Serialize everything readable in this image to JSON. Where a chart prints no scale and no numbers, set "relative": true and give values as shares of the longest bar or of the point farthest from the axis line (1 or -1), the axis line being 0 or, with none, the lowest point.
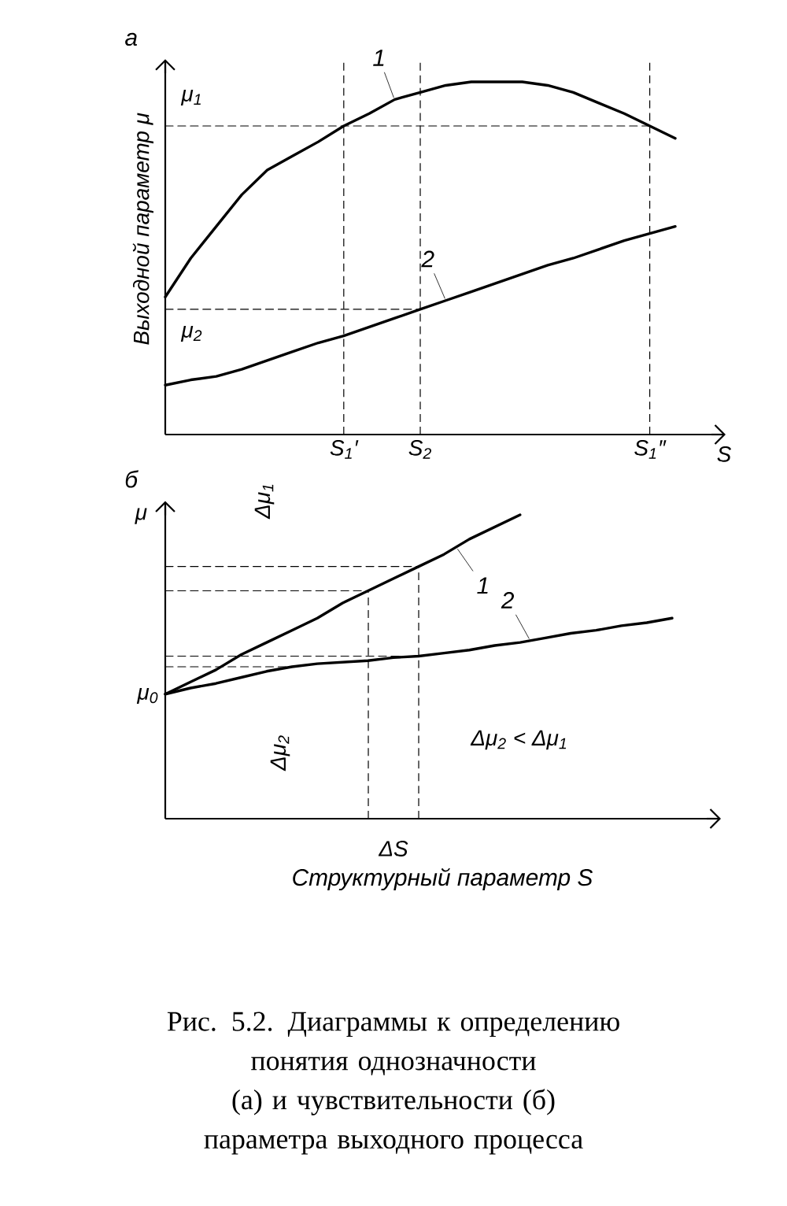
{
  "chart_data": [
    {
      "type": "line",
      "title": "а",
      "xlabel": "S",
      "ylabel": "Выходной параметр μ",
      "relative": true,
      "categories": [
        null,
        null,
        null,
        null,
        null,
        null,
        null,
        "S$_{1}$′",
        null,
        null,
        "S$_{2}$",
        null,
        null,
        null,
        null,
        null,
        null,
        null,
        null,
        "S$_{1}$″",
        null,
        null
      ],
      "series": [
        {
          "name": "1",
          "color": "#000000",
          "values": [
            0.39,
            0.5,
            0.59,
            0.68,
            0.75,
            0.79,
            0.83,
            0.875,
            0.91,
            0.95,
            0.97,
            0.99,
            1.0,
            1.0,
            1.0,
            0.99,
            0.97,
            0.94,
            0.91,
            0.875,
            0.84,
            null
          ]
        },
        {
          "name": "2",
          "color": "#000000",
          "values": [
            0.14,
            0.155,
            0.165,
            0.185,
            0.21,
            0.235,
            0.26,
            0.28,
            0.305,
            0.33,
            0.355,
            0.38,
            0.405,
            0.43,
            0.455,
            0.48,
            0.5,
            0.525,
            0.55,
            0.57,
            0.59,
            null
          ]
        },
        {
          "color": "#000000",
          "line_style": "dashed",
          "values": [
            0.875,
            0.875,
            0.875,
            0.875,
            0.875,
            0.875,
            0.875,
            0.875,
            0.875,
            0.875,
            0.875,
            0.875,
            0.875,
            0.875,
            0.875,
            0.875,
            0.875,
            0.875,
            0.875,
            0.875,
            null,
            null
          ]
        },
        {
          "color": "#000000",
          "line_style": "dashed",
          "values": [
            0.355,
            0.355,
            0.355,
            0.355,
            0.355,
            0.355,
            0.355,
            0.355,
            0.355,
            0.355,
            0.355,
            null,
            null,
            null,
            null,
            null,
            null,
            null,
            null,
            null,
            null,
            null
          ]
        }
      ],
      "ref_lines": [
        {
          "axis": "x",
          "value": "S$_{1}$′",
          "color": "#000000",
          "line_style": "dashed"
        },
        {
          "axis": "x",
          "value": "S$_{2}$",
          "color": "#000000",
          "line_style": "dashed"
        },
        {
          "axis": "x",
          "value": "S$_{1}$″",
          "color": "#000000",
          "line_style": "dashed"
        }
      ],
      "annotations": [
        "μ$_{1}$",
        "μ$_{2}$"
      ]
    },
    {
      "type": "line",
      "title": "б",
      "xlabel": "Структурный параметр S",
      "ylabel": "μ",
      "relative": true,
      "categories": [
        null,
        null,
        null,
        null,
        null,
        null,
        null,
        null,
        null,
        null,
        null,
        null,
        null,
        null,
        null,
        null,
        null,
        null,
        null,
        null,
        null,
        null
      ],
      "series": [
        {
          "name": "1",
          "color": "#000000",
          "values": [
            0.41,
            0.45,
            0.49,
            0.54,
            0.58,
            0.62,
            0.66,
            0.71,
            0.75,
            0.79,
            0.83,
            0.87,
            0.92,
            0.96,
            1.0,
            null,
            null,
            null,
            null,
            null,
            null,
            null
          ]
        },
        {
          "name": "2",
          "color": "#000000",
          "values": [
            0.41,
            0.43,
            0.445,
            0.465,
            0.485,
            0.5,
            0.51,
            0.515,
            0.52,
            0.53,
            0.535,
            0.545,
            0.555,
            0.57,
            0.58,
            0.595,
            0.61,
            0.62,
            0.635,
            0.645,
            0.66,
            null
          ]
        },
        {
          "color": "#000000",
          "line_style": "dashed",
          "values": [
            0.83,
            0.83,
            0.83,
            0.83,
            0.83,
            0.83,
            0.83,
            0.83,
            0.83,
            0.83,
            0.83,
            null,
            null,
            null,
            null,
            null,
            null,
            null,
            null,
            null,
            null,
            null
          ]
        },
        {
          "color": "#000000",
          "line_style": "dashed",
          "values": [
            0.75,
            0.75,
            0.75,
            0.75,
            0.75,
            0.75,
            0.75,
            0.75,
            0.75,
            null,
            null,
            null,
            null,
            null,
            null,
            null,
            null,
            null,
            null,
            null,
            null,
            null
          ]
        },
        {
          "color": "#000000",
          "line_style": "dashed",
          "values": [
            0.535,
            0.535,
            0.535,
            0.535,
            0.535,
            0.535,
            0.535,
            0.535,
            0.535,
            0.535,
            0.535,
            null,
            null,
            null,
            null,
            null,
            null,
            null,
            null,
            null,
            null,
            null
          ]
        },
        {
          "color": "#000000",
          "line_style": "dashed",
          "values": [
            0.5,
            0.5,
            0.5,
            0.5,
            0.5,
            0.5,
            null,
            null,
            null,
            null,
            null,
            null,
            null,
            null,
            null,
            null,
            null,
            null,
            null,
            null,
            null,
            null
          ]
        }
      ],
      "annotations": [
        "μ$_{0}$",
        "ΔS",
        "Δμ$_{1}$",
        "Δμ$_{2}$",
        "Δμ$_{2}$ < Δμ$_{1}$",
        "Рис. 5.2. Диаграммы к определению понятия однозначности (а) и чувствительности (б) параметра выходного процесса"
      ]
    }
  ]
}
